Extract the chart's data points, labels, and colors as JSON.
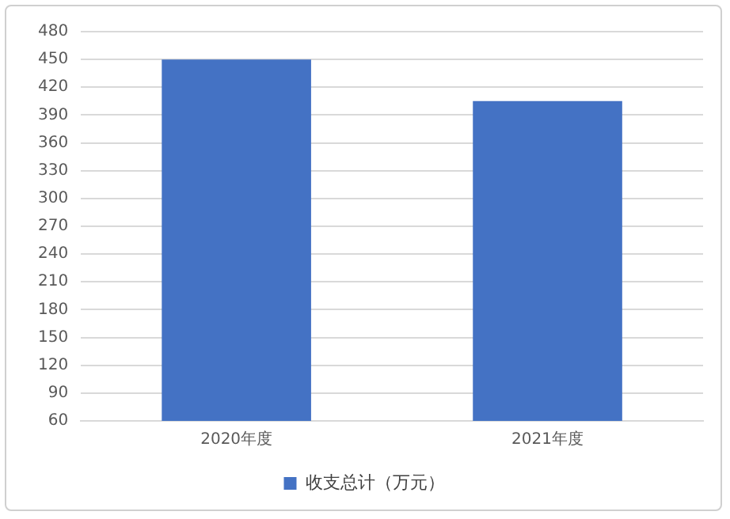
{
  "chart_data": {
    "type": "bar",
    "categories": [
      "2020年度",
      "2021年度"
    ],
    "series": [
      {
        "name": "收支总计（万元）",
        "color": "#4472c4",
        "values": [
          450,
          405
        ]
      }
    ],
    "ylim": [
      60,
      480
    ],
    "yticks": [
      60,
      90,
      120,
      150,
      180,
      210,
      240,
      270,
      300,
      330,
      360,
      390,
      420,
      450,
      480
    ],
    "grid": "y",
    "legend": "bottom"
  }
}
